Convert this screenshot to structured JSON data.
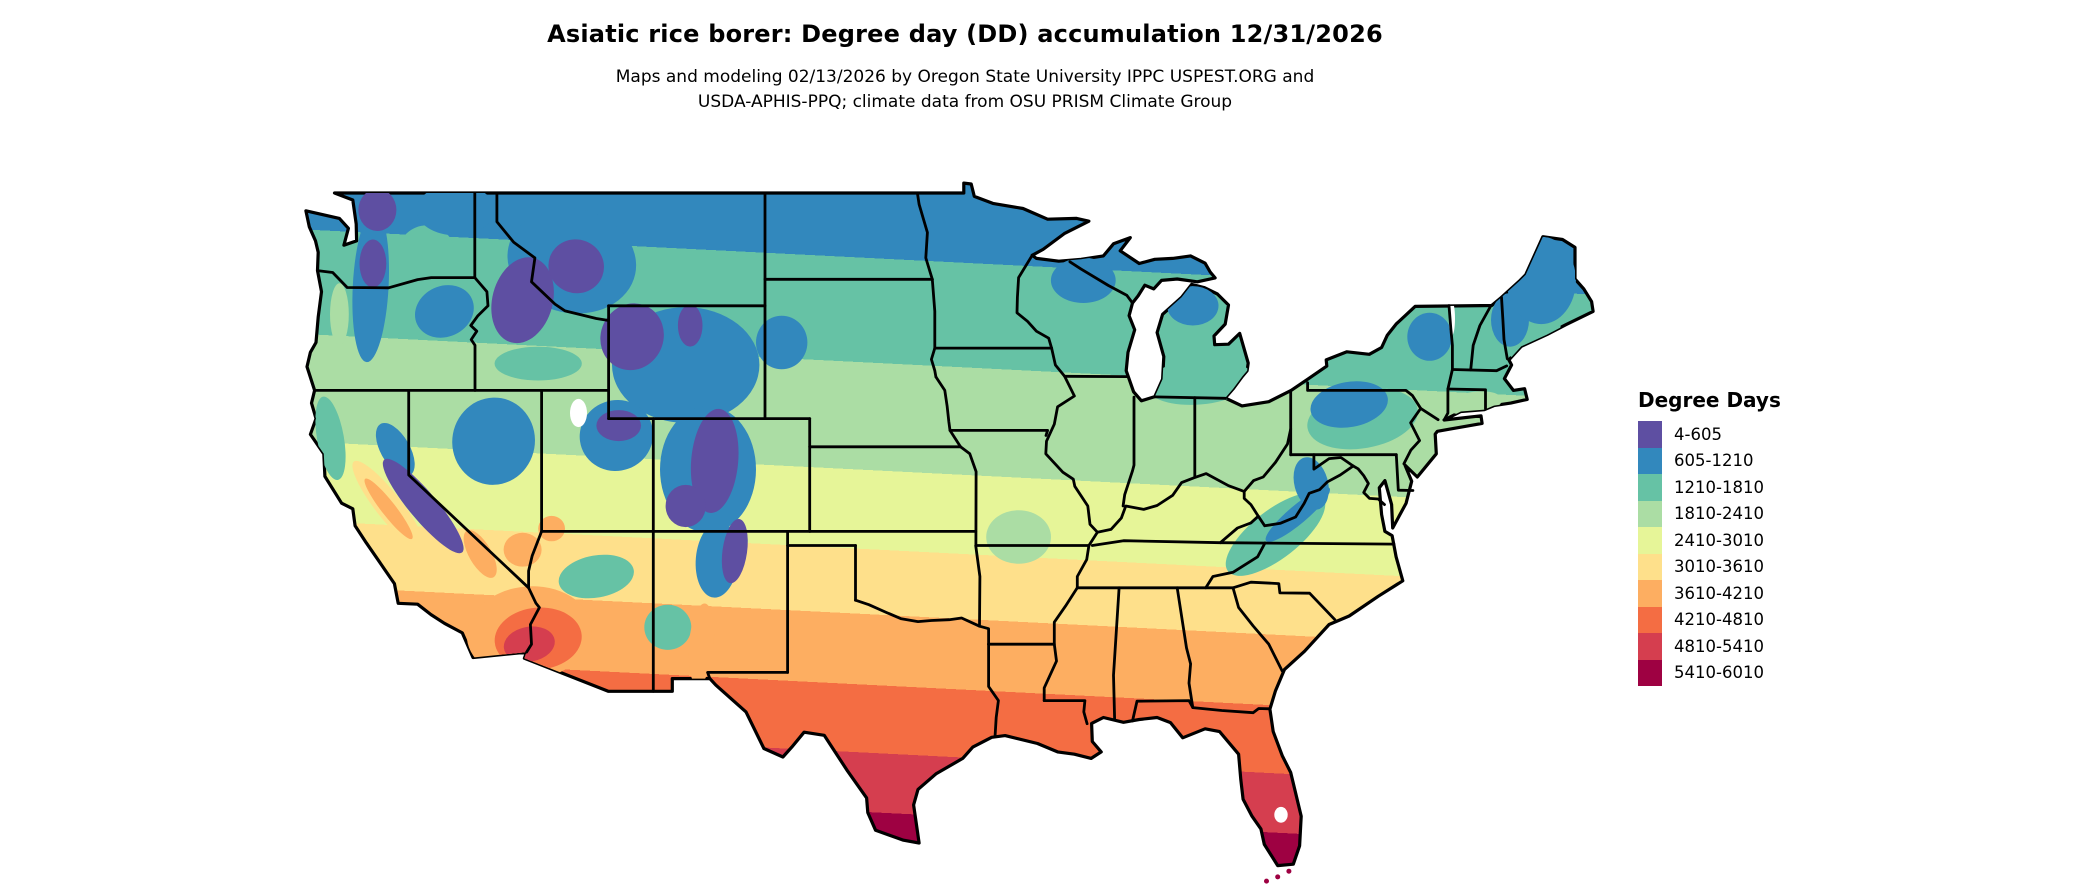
{
  "header": {
    "title": "Asiatic rice borer: Degree day (DD) accumulation 12/31/2026",
    "subtitle_line1": "Maps and modeling 02/13/2026 by Oregon State University IPPC USPEST.ORG and",
    "subtitle_line2": "USDA-APHIS-PPQ; climate data from OSU PRISM Climate Group"
  },
  "legend": {
    "title": "Degree Days",
    "entries": [
      {
        "label": "4-605",
        "color": "#5e4fa2"
      },
      {
        "label": "605-1210",
        "color": "#3288bd"
      },
      {
        "label": "1210-1810",
        "color": "#66c2a5"
      },
      {
        "label": "1810-2410",
        "color": "#abdda4"
      },
      {
        "label": "2410-3010",
        "color": "#e6f598"
      },
      {
        "label": "3010-3610",
        "color": "#fee08b"
      },
      {
        "label": "3610-4210",
        "color": "#fdae61"
      },
      {
        "label": "4210-4810",
        "color": "#f46d43"
      },
      {
        "label": "4810-5410",
        "color": "#d53e4f"
      },
      {
        "label": "5410-6010",
        "color": "#9e0142"
      }
    ]
  },
  "map": {
    "region": "Continental United States",
    "state_border_color": "#000000",
    "water_background_color": "#ffffff"
  }
}
